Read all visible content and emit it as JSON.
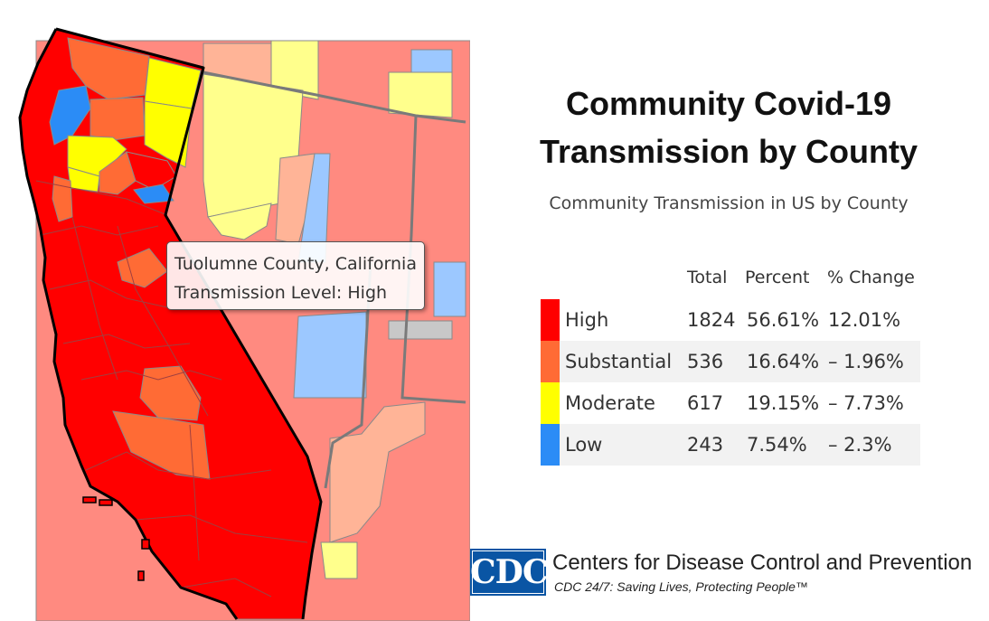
{
  "title_line1": "Community Covid-19",
  "title_line2": "Transmission by County",
  "subtitle": "Community Transmission in US by County",
  "tooltip": {
    "county": "Tuolumne County, California",
    "level": "Transmission Level: High"
  },
  "legend": {
    "headers": {
      "total": "Total",
      "percent": "Percent",
      "change": "% Change"
    },
    "rows": [
      {
        "label": "High",
        "total": "1824",
        "percent": "56.61%",
        "change": "12.01%",
        "color": "#ff0000"
      },
      {
        "label": "Substantial",
        "total": "536",
        "percent": "16.64%",
        "change": "– 1.96%",
        "color": "#ff6b35"
      },
      {
        "label": "Moderate",
        "total": "617",
        "percent": "19.15%",
        "change": "– 7.73%",
        "color": "#ffff00"
      },
      {
        "label": "Low",
        "total": "243",
        "percent": "7.54%",
        "change": "– 2.3%",
        "color": "#2b8cf6"
      }
    ]
  },
  "colors": {
    "high": "#ff0000",
    "substantial": "#ff6b35",
    "moderate": "#ffff00",
    "low": "#2b8cf6",
    "faded_high": "#ff8a80",
    "faded_substantial": "#ffb497",
    "faded_moderate": "#ffff8c",
    "faded_low": "#9cc8ff",
    "no_data": "#c8c8c8"
  },
  "cdc": {
    "logo_text": "CDC",
    "name": "Centers for Disease Control and Prevention",
    "tagline": "CDC 24/7: Saving Lives, Protecting People™"
  }
}
